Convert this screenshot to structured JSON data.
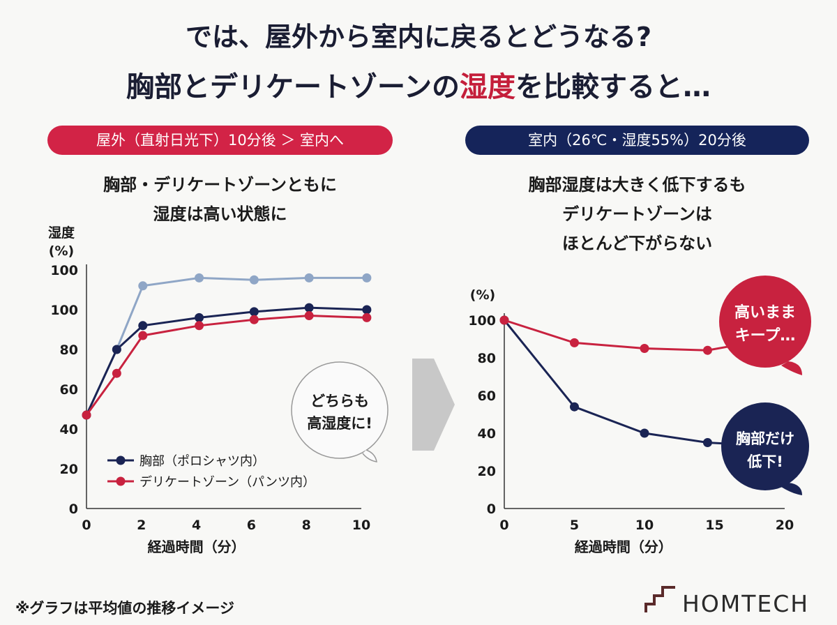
{
  "title_line1": "では、屋外から室内に戻るとどうなる?",
  "title_line2_a": "胸部とデリケートゾーンの",
  "title_line2_hl": "湿度",
  "title_line2_b": "を比較すると…",
  "left_pill": "屋外（直射日光下）10分後 ＞ 室内へ",
  "right_pill": "室内（26℃・湿度55%）20分後",
  "left_sub_1": "胸部・デリケートゾーンともに",
  "left_sub_2": "湿度は高い状態に",
  "right_sub_1": "胸部湿度は大きく低下するも",
  "right_sub_2": "デリケートゾーンは",
  "right_sub_3": "ほとんど下がらない",
  "left_bubble_1": "どちらも",
  "left_bubble_2": "高湿度に!",
  "right_bubble_red_1": "高いまま",
  "right_bubble_red_2": "キープ…",
  "right_bubble_navy_1": "胸部だけ",
  "right_bubble_navy_2": "低下!",
  "footnote": "※グラフは平均値の推移イメージ",
  "brand": "HOMTECH",
  "colors": {
    "navy": "#1a2454",
    "red": "#c8223f",
    "lightblue": "#8fa6c6",
    "arrow": "#c8c8c8"
  },
  "chart_data": [
    {
      "type": "line",
      "ylabel": "湿度\n(%)",
      "xlabel": "経過時間（分）",
      "xlim": [
        0,
        10
      ],
      "ylim": [
        0,
        100
      ],
      "x_ticks": [
        0,
        2,
        4,
        6,
        8,
        10
      ],
      "y_tick_labels": [
        "0",
        "20",
        "40",
        "60",
        "80",
        "100",
        "100"
      ],
      "series": [
        {
          "name": "",
          "color": "lightblue",
          "x": [
            0,
            1.1,
            2.05,
            4.1,
            6.1,
            8.1,
            10.2
          ],
          "y_display": [
            47,
            80,
            112,
            116,
            115,
            116,
            116
          ]
        },
        {
          "name": "胸部（ポロシャツ内）",
          "color": "navy",
          "x": [
            0,
            1.1,
            2.05,
            4.1,
            6.1,
            8.1,
            10.2
          ],
          "y_display": [
            47,
            80,
            92,
            96,
            99,
            101,
            100
          ]
        },
        {
          "name": "デリケートゾーン（パンツ内）",
          "color": "red",
          "x": [
            0,
            1.1,
            2.05,
            4.1,
            6.1,
            8.1,
            10.2
          ],
          "y_display": [
            47,
            68,
            87,
            92,
            95,
            97,
            96
          ]
        }
      ]
    },
    {
      "type": "line",
      "ylabel": "(%)",
      "xlabel": "経過時間（分）",
      "xlim": [
        0,
        20
      ],
      "ylim": [
        0,
        100
      ],
      "x_ticks": [
        0,
        5,
        10,
        15,
        20
      ],
      "y_ticks": [
        0,
        20,
        40,
        60,
        80,
        100
      ],
      "series": [
        {
          "name": "胸部",
          "color": "navy",
          "x": [
            0,
            5,
            10,
            14.5,
            17
          ],
          "y": [
            100,
            54,
            40,
            35,
            34
          ]
        },
        {
          "name": "デリケートゾーン",
          "color": "red",
          "x": [
            0,
            5,
            10,
            14.5,
            16
          ],
          "y": [
            100,
            88,
            85,
            84,
            86
          ]
        }
      ]
    }
  ]
}
